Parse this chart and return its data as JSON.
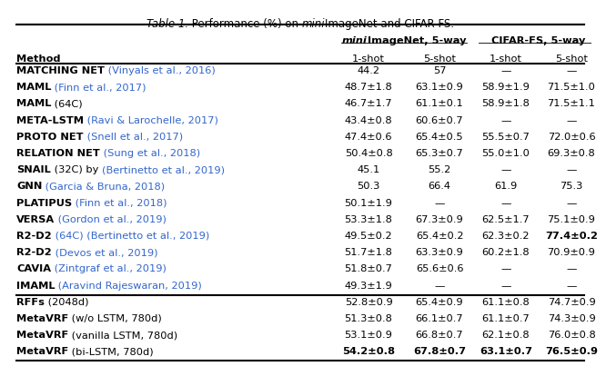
{
  "title_italic": "Table 1.",
  "title_rest": " Performance (%) on ",
  "title_mini_italic": "mini",
  "title_end": "ImageNet and CIFAR-FS.",
  "mini_header": "miniImageNet, 5-way",
  "cifar_header": "CIFAR-FS, 5-way",
  "sub_headers": [
    "Method",
    "1-shot",
    "5-shot",
    "1-shot",
    "5-shot"
  ],
  "rows": [
    {
      "method_bold": "Matching Net",
      "method_sc": true,
      "cite": " (Vinyals et al., 2016)",
      "cite_colored": true,
      "vals": [
        "44.2",
        "57",
        "—",
        "—"
      ],
      "bold_vals": []
    },
    {
      "method_bold": "Maml",
      "method_sc": true,
      "cite": " (Finn et al., 2017)",
      "cite_colored": true,
      "vals": [
        "48.7±1.8",
        "63.1±0.9",
        "58.9±1.9",
        "71.5±1.0"
      ],
      "bold_vals": []
    },
    {
      "method_bold": "Maml",
      "method_sc": true,
      "cite": " (64C)",
      "cite_colored": false,
      "vals": [
        "46.7±1.7",
        "61.1±0.1",
        "58.9±1.8",
        "71.5±1.1"
      ],
      "bold_vals": []
    },
    {
      "method_bold": "Meta-Lstm",
      "method_sc": true,
      "cite": " (Ravi & Larochelle, 2017)",
      "cite_colored": true,
      "vals": [
        "43.4±0.8",
        "60.6±0.7",
        "—",
        "—"
      ],
      "bold_vals": []
    },
    {
      "method_bold": "Proto Net",
      "method_sc": true,
      "cite": " (Snell et al., 2017)",
      "cite_colored": true,
      "vals": [
        "47.4±0.6",
        "65.4±0.5",
        "55.5±0.7",
        "72.0±0.6"
      ],
      "bold_vals": []
    },
    {
      "method_bold": "Relation Net",
      "method_sc": true,
      "cite": " (Sung et al., 2018)",
      "cite_colored": true,
      "vals": [
        "50.4±0.8",
        "65.3±0.7",
        "55.0±1.0",
        "69.3±0.8"
      ],
      "bold_vals": []
    },
    {
      "method_bold": "Snail",
      "method_sc": true,
      "cite": " (32C) by (Bertinetto et al., 2019)",
      "cite_colored": true,
      "vals": [
        "45.1",
        "55.2",
        "—",
        "—"
      ],
      "bold_vals": []
    },
    {
      "method_bold": "Gnn",
      "method_sc": true,
      "cite": " (Garcia & Bruna, 2018)",
      "cite_colored": true,
      "vals": [
        "50.3",
        "66.4",
        "61.9",
        "75.3"
      ],
      "bold_vals": []
    },
    {
      "method_bold": "Platipus",
      "method_sc": true,
      "cite": " (Finn et al., 2018)",
      "cite_colored": true,
      "vals": [
        "50.1±1.9",
        "—",
        "—",
        "—"
      ],
      "bold_vals": []
    },
    {
      "method_bold": "Versa",
      "method_sc": true,
      "cite": " (Gordon et al., 2019)",
      "cite_colored": true,
      "vals": [
        "53.3±1.8",
        "67.3±0.9",
        "62.5±1.7",
        "75.1±0.9"
      ],
      "bold_vals": []
    },
    {
      "method_bold": "R2-D2",
      "method_sc": true,
      "cite": " (64C) (Bertinetto et al., 2019)",
      "cite_colored": true,
      "vals": [
        "49.5±0.2",
        "65.4±0.2",
        "62.3±0.2",
        "77.4±0.2"
      ],
      "bold_vals": [
        3
      ]
    },
    {
      "method_bold": "R2-D2",
      "method_sc": true,
      "cite": " (Devos et al., 2019)",
      "cite_colored": true,
      "vals": [
        "51.7±1.8",
        "63.3±0.9",
        "60.2±1.8",
        "70.9±0.9"
      ],
      "bold_vals": []
    },
    {
      "method_bold": "Cavia",
      "method_sc": true,
      "cite": " (Zintgraf et al., 2019)",
      "cite_colored": true,
      "vals": [
        "51.8±0.7",
        "65.6±0.6",
        "—",
        "—"
      ],
      "bold_vals": []
    },
    {
      "method_bold": "Imaml",
      "method_sc": true,
      "cite": " (Aravind Rajeswaran, 2019)",
      "cite_colored": true,
      "vals": [
        "49.3±1.9",
        "—",
        "—",
        "—"
      ],
      "bold_vals": []
    },
    {
      "method_bold": "RFFs",
      "method_sc": false,
      "cite": " (2048d)",
      "cite_colored": false,
      "vals": [
        "52.8±0.9",
        "65.4±0.9",
        "61.1±0.8",
        "74.7±0.9"
      ],
      "bold_vals": []
    },
    {
      "method_bold": "MetaVRF",
      "method_sc": false,
      "cite": " (w/o LSTM, 780d)",
      "cite_colored": false,
      "vals": [
        "51.3±0.8",
        "66.1±0.7",
        "61.1±0.7",
        "74.3±0.9"
      ],
      "bold_vals": []
    },
    {
      "method_bold": "MetaVRF",
      "method_sc": false,
      "cite": " (vanilla LSTM, 780d)",
      "cite_colored": false,
      "vals": [
        "53.1±0.9",
        "66.8±0.7",
        "62.1±0.8",
        "76.0±0.8"
      ],
      "bold_vals": []
    },
    {
      "method_bold": "MetaVRF",
      "method_sc": false,
      "cite": " (bi-LSTM, 780d)",
      "cite_colored": false,
      "vals": [
        "54.2±0.8",
        "67.8±0.7",
        "63.1±0.7",
        "76.5±0.9"
      ],
      "bold_vals": [
        0,
        1,
        2,
        3
      ],
      "bold_method": true
    }
  ],
  "thick_sep_after_rows": [
    13
  ],
  "citation_color": "#3366CC",
  "bg_color": "#ffffff"
}
